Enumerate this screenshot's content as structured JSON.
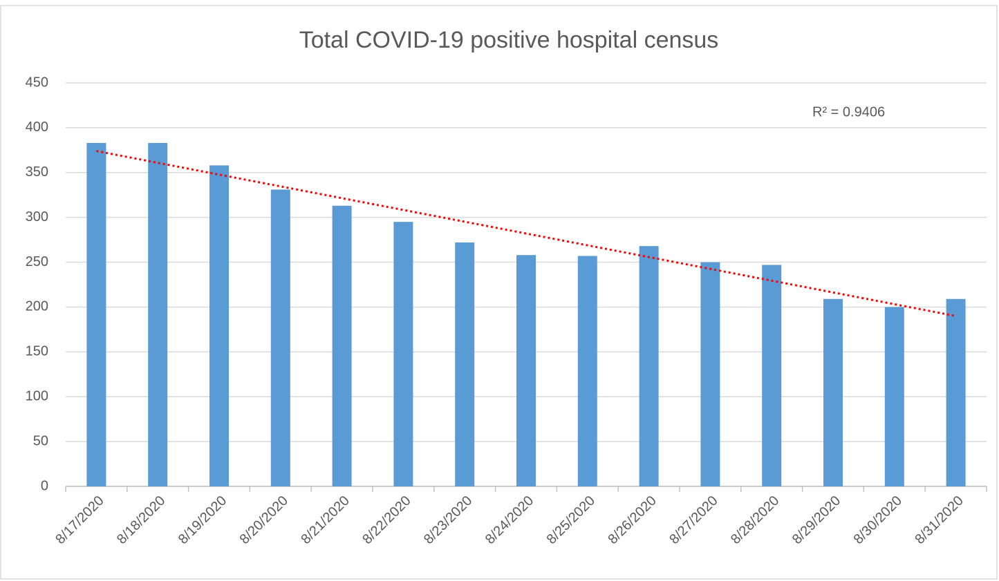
{
  "chart_data": {
    "type": "bar",
    "title": "Total COVID-19 positive hospital census",
    "categories": [
      "8/17/2020",
      "8/18/2020",
      "8/19/2020",
      "8/20/2020",
      "8/21/2020",
      "8/22/2020",
      "8/23/2020",
      "8/24/2020",
      "8/25/2020",
      "8/26/2020",
      "8/27/2020",
      "8/28/2020",
      "8/29/2020",
      "8/30/2020",
      "8/31/2020"
    ],
    "values": [
      383,
      383,
      358,
      331,
      313,
      295,
      272,
      258,
      257,
      268,
      250,
      247,
      209,
      200,
      209
    ],
    "color": "#5b9bd5",
    "ylim": [
      0,
      450
    ],
    "yticks": [
      0,
      50,
      100,
      150,
      200,
      250,
      300,
      350,
      400,
      450
    ],
    "grid": true,
    "trendline": {
      "values": [
        374,
        190
      ],
      "color": "#ff0000"
    },
    "annotation": "R² = 0.9406"
  }
}
